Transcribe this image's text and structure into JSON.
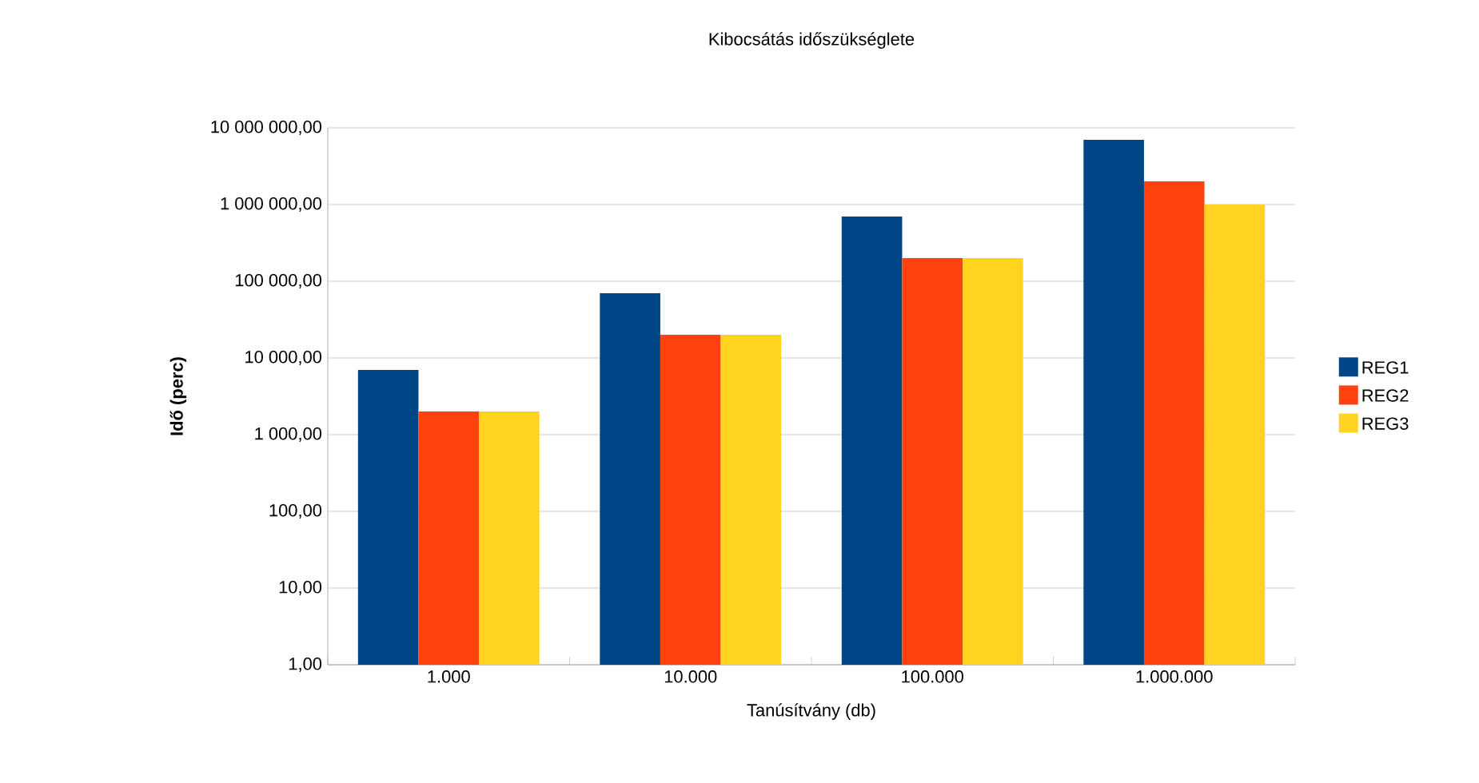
{
  "chart_data": {
    "type": "bar",
    "title": "Kibocsátás időszükséglete",
    "xlabel": "Tanúsítvány (db)",
    "ylabel": "Idő (perc)",
    "categories": [
      "1.000",
      "10.000",
      "100.000",
      "1.000.000"
    ],
    "series": [
      {
        "name": "REG1",
        "color": "#004586",
        "values": [
          7000,
          70000,
          700000,
          7000000
        ]
      },
      {
        "name": "REG2",
        "color": "#ff420e",
        "values": [
          2000,
          20000,
          200000,
          2000000
        ]
      },
      {
        "name": "REG3",
        "color": "#ffd320",
        "values": [
          2000,
          20000,
          200000,
          1000000
        ]
      }
    ],
    "log": "y",
    "ylim": [
      1,
      10000000
    ],
    "yticks": [
      {
        "value": 1,
        "label": "1,00"
      },
      {
        "value": 10,
        "label": "10,00"
      },
      {
        "value": 100,
        "label": "100,00"
      },
      {
        "value": 1000,
        "label": "1 000,00"
      },
      {
        "value": 10000,
        "label": "10 000,00"
      },
      {
        "value": 100000,
        "label": "100 000,00"
      },
      {
        "value": 1000000,
        "label": "1 000 000,00"
      },
      {
        "value": 10000000,
        "label": "10 000 000,00"
      }
    ],
    "grid": "y",
    "legend": "right"
  }
}
